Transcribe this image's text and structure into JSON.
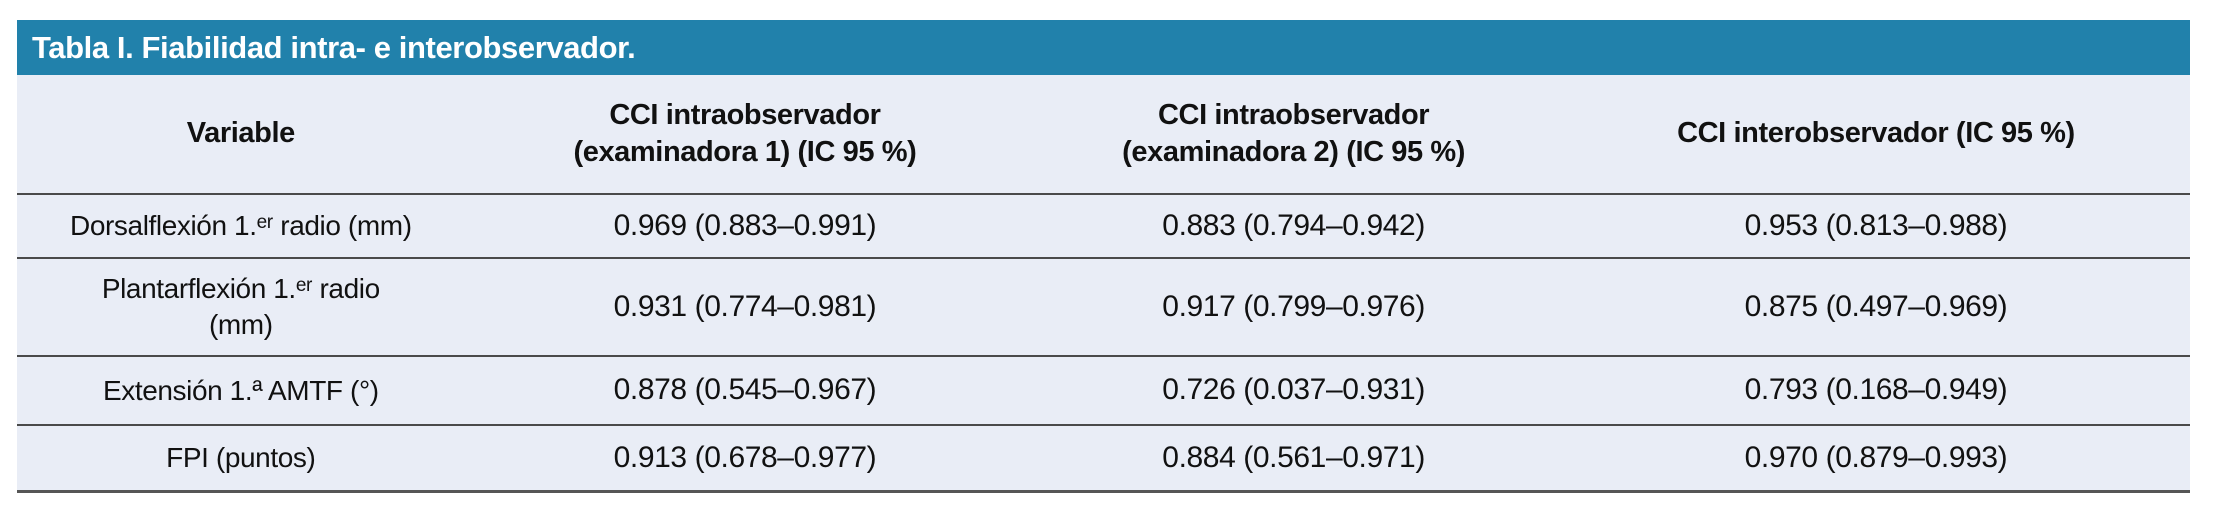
{
  "colors": {
    "title_bar_bg": "#2181AB",
    "title_text": "#FFFFFF",
    "table_bg": "#E9EDF6",
    "rule": "#4A4A4A",
    "body_text": "#111111"
  },
  "table": {
    "title": "Tabla I. Fiabilidad intra- e interobservador.",
    "header": {
      "variable": "Variable",
      "intra1": "CCI intraobservador\n(examinadora 1) (IC 95 %)",
      "intra2": "CCI intraobservador\n(examinadora 2) (IC 95 %)",
      "inter": "CCI interobservador (IC 95 %)"
    },
    "rows": [
      {
        "variable": "Dorsalflexión 1.ᵉʳ radio (mm)",
        "values": [
          "0.969 (0.883–0.991)",
          "0.883 (0.794–0.942)",
          "0.953 (0.813–0.988)"
        ]
      },
      {
        "variable": "Plantarflexión 1.ᵉʳ radio\n(mm)",
        "values": [
          "0.931 (0.774–0.981)",
          "0.917 (0.799–0.976)",
          "0.875 (0.497–0.969)"
        ]
      },
      {
        "variable": "Extensión 1.ª AMTF (°)",
        "values": [
          "0.878 (0.545–0.967)",
          "0.726 (0.037–0.931)",
          "0.793 (0.168–0.949)"
        ]
      },
      {
        "variable": "FPI (puntos)",
        "values": [
          "0.913 (0.678–0.977)",
          "0.884 (0.561–0.971)",
          "0.970 (0.879–0.993)"
        ]
      }
    ]
  }
}
